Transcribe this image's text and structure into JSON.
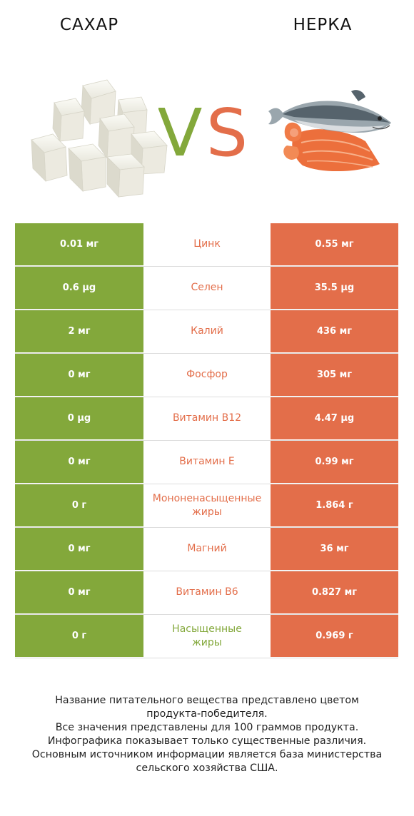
{
  "header": {
    "left_title": "САХАР",
    "right_title": "НЕРКА",
    "vs_left": "V",
    "vs_right": "S"
  },
  "colors": {
    "left_accent": "#83a83b",
    "right_accent": "#e36e4a"
  },
  "rows": [
    {
      "left": "0.01 мг",
      "name": "Цинк",
      "right": "0.55 мг",
      "winner": "right"
    },
    {
      "left": "0.6 µg",
      "name": "Селен",
      "right": "35.5 µg",
      "winner": "right"
    },
    {
      "left": "2 мг",
      "name": "Калий",
      "right": "436 мг",
      "winner": "right"
    },
    {
      "left": "0 мг",
      "name": "Фосфор",
      "right": "305 мг",
      "winner": "right"
    },
    {
      "left": "0 µg",
      "name": "Витамин B12",
      "right": "4.47 µg",
      "winner": "right"
    },
    {
      "left": "0 мг",
      "name": "Витамин E",
      "right": "0.99 мг",
      "winner": "right"
    },
    {
      "left": "0 г",
      "name": "Мононенасыщенные\nжиры",
      "right": "1.864 г",
      "winner": "right"
    },
    {
      "left": "0 мг",
      "name": "Магний",
      "right": "36 мг",
      "winner": "right"
    },
    {
      "left": "0 мг",
      "name": "Витамин B6",
      "right": "0.827 мг",
      "winner": "right"
    },
    {
      "left": "0 г",
      "name": "Насыщенные\nжиры",
      "right": "0.969 г",
      "winner": "left"
    }
  ],
  "footer": {
    "line1": "Название питательного вещества представлено цветом",
    "line2": "продукта-победителя.",
    "line3": "Все значения представлены для 100 граммов продукта.",
    "line4": "Инфографика показывает только существенные различия.",
    "line5": "Основным источником информации является база министерства",
    "line6": "сельского хозяйства США."
  }
}
